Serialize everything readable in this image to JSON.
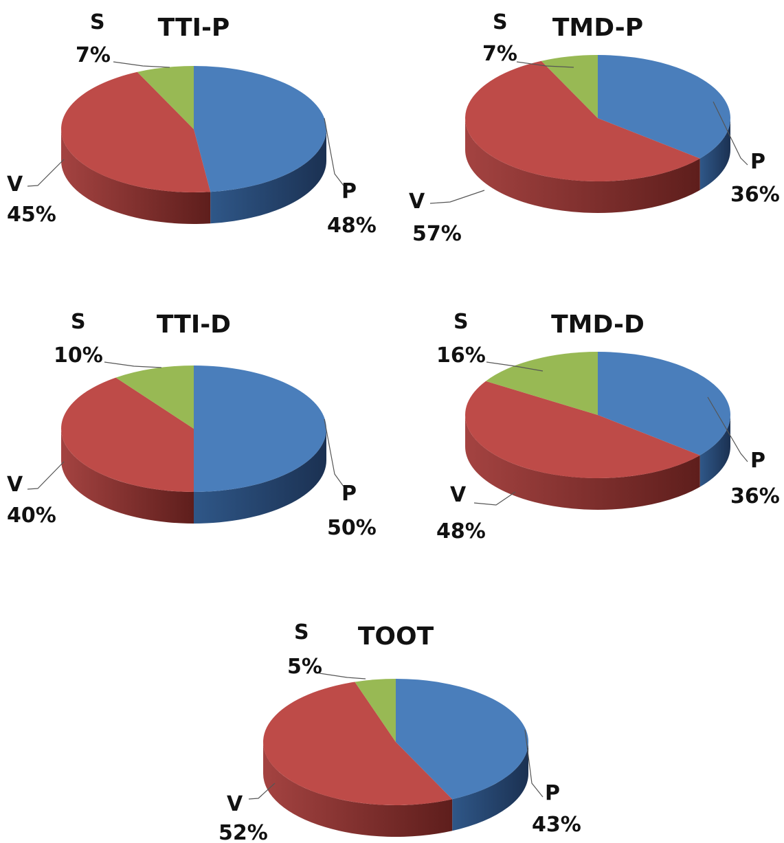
{
  "colors": {
    "P": "#4a7ebb",
    "V": "#be4b48",
    "S": "#98b954"
  },
  "chart_data": [
    {
      "type": "pie",
      "title": "TTI-P",
      "slices": [
        {
          "label": "P",
          "value": 48,
          "display": "48%"
        },
        {
          "label": "V",
          "value": 45,
          "display": "45%"
        },
        {
          "label": "S",
          "value": 7,
          "display": "7%"
        }
      ]
    },
    {
      "type": "pie",
      "title": "TMD-P",
      "slices": [
        {
          "label": "P",
          "value": 36,
          "display": "36%"
        },
        {
          "label": "V",
          "value": 57,
          "display": "57%"
        },
        {
          "label": "S",
          "value": 7,
          "display": "7%"
        }
      ]
    },
    {
      "type": "pie",
      "title": "TTI-D",
      "slices": [
        {
          "label": "P",
          "value": 50,
          "display": "50%"
        },
        {
          "label": "V",
          "value": 40,
          "display": "40%"
        },
        {
          "label": "S",
          "value": 10,
          "display": "10%"
        }
      ]
    },
    {
      "type": "pie",
      "title": "TMD-D",
      "slices": [
        {
          "label": "P",
          "value": 36,
          "display": "36%"
        },
        {
          "label": "V",
          "value": 48,
          "display": "48%"
        },
        {
          "label": "S",
          "value": 16,
          "display": "16%"
        }
      ]
    },
    {
      "type": "pie",
      "title": "TOOT",
      "slices": [
        {
          "label": "P",
          "value": 43,
          "display": "43%"
        },
        {
          "label": "V",
          "value": 52,
          "display": "52%"
        },
        {
          "label": "S",
          "value": 5,
          "display": "5%"
        }
      ]
    }
  ]
}
